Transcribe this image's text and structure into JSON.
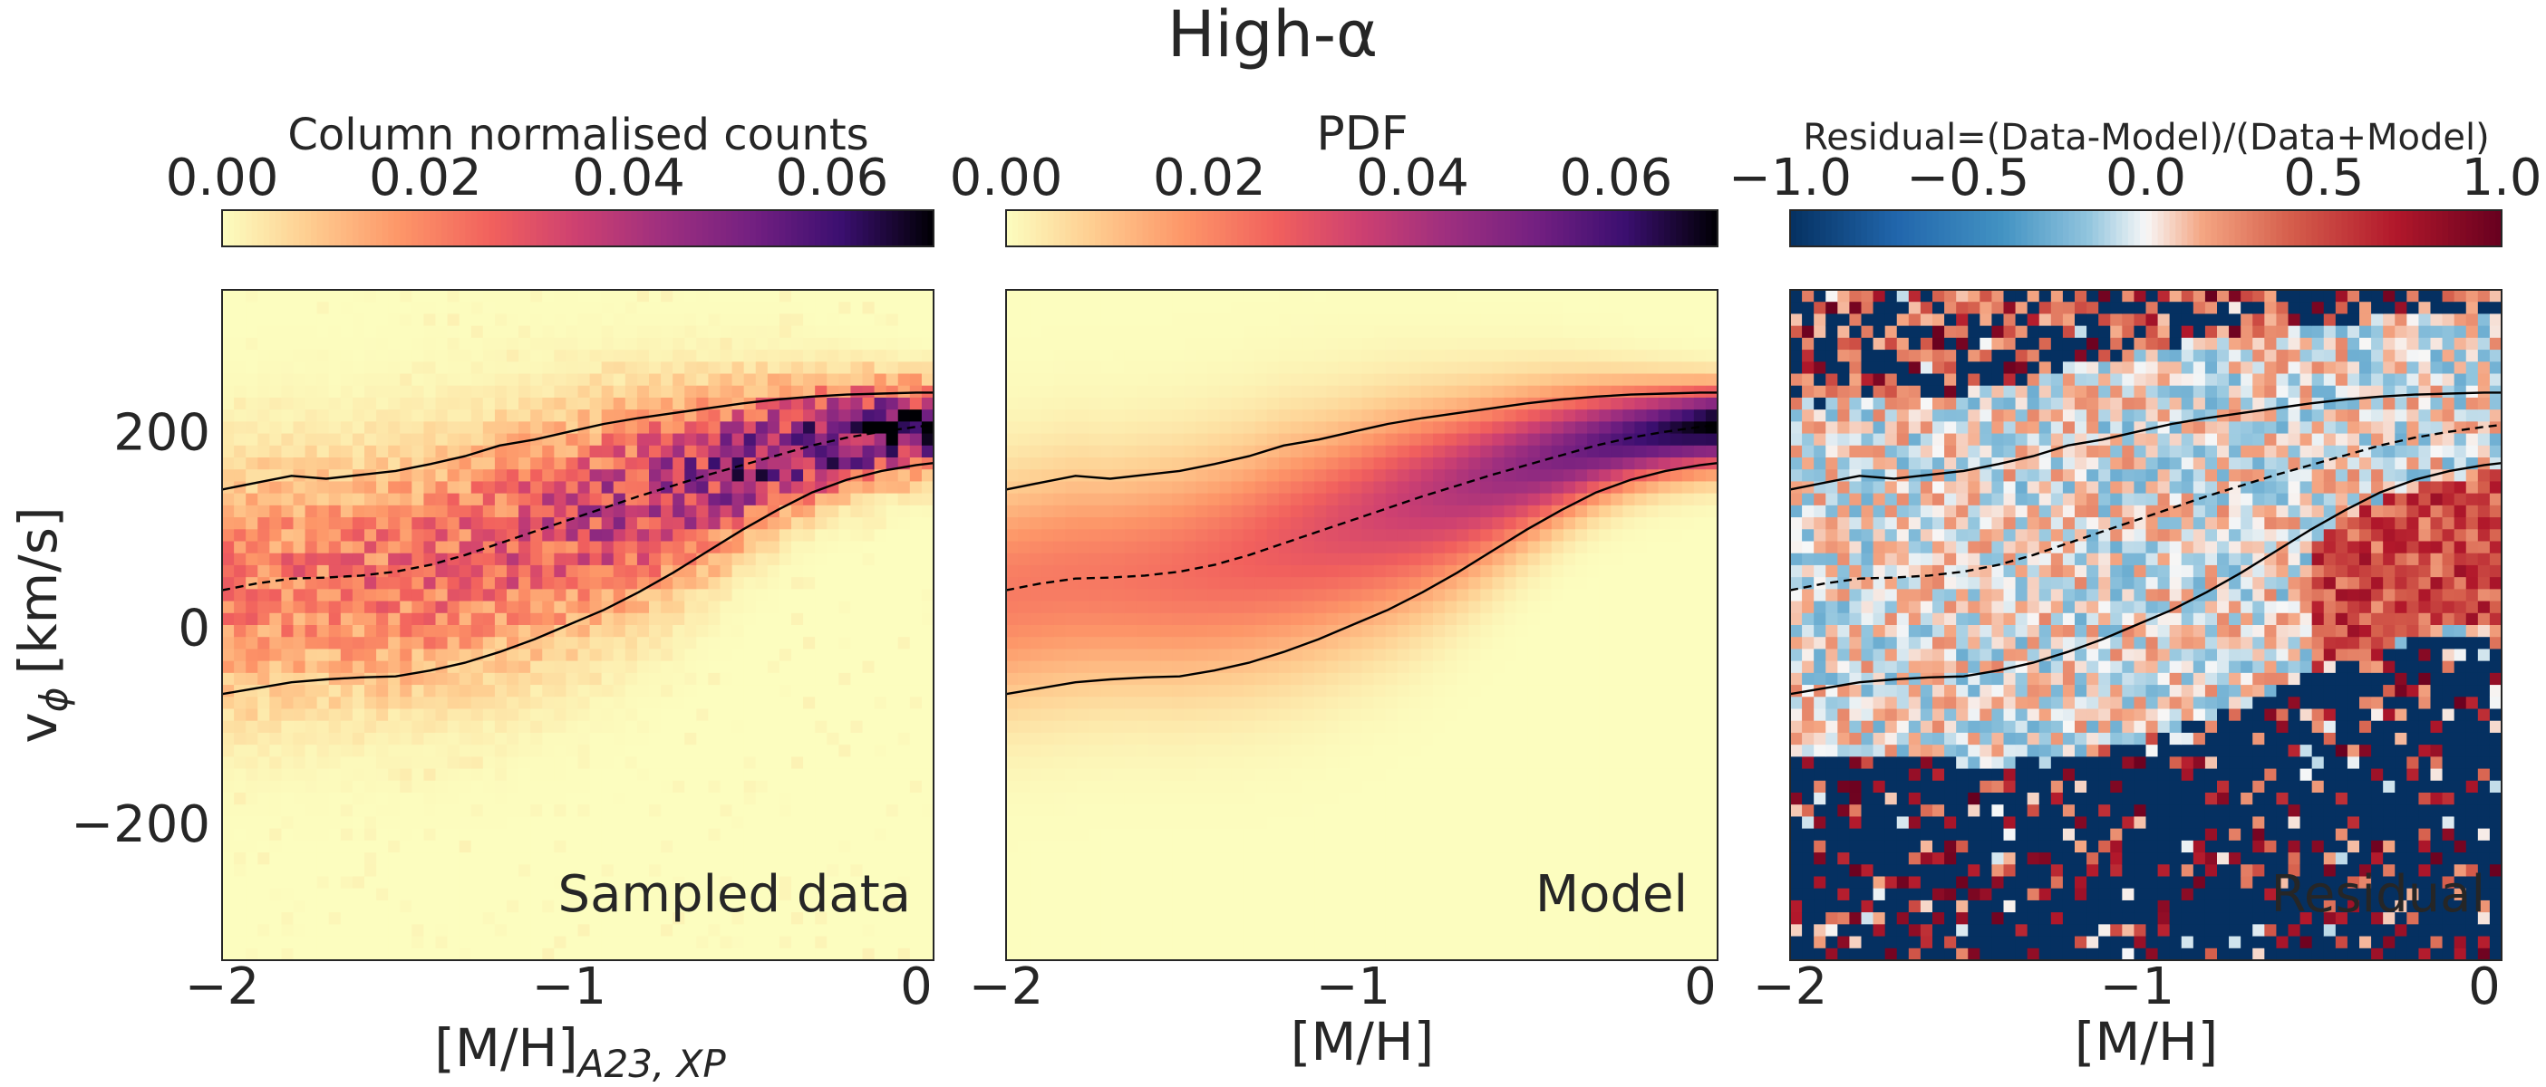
{
  "title": "High-α",
  "chart_data": [
    {
      "type": "heatmap",
      "panel_label": "Sampled data",
      "colorbar": {
        "label": "Column normalised counts",
        "range": [
          0.0,
          0.07
        ],
        "ticks": [
          "0.00",
          "0.02",
          "0.04",
          "0.06"
        ],
        "colormap": "magma_r"
      },
      "xlabel_main": "[M/H]",
      "xlabel_sub": "A23, XP",
      "ylabel_main": "v",
      "ylabel_sub": "ϕ",
      "ylabel_unit": "[km/s]",
      "xlim": [
        -2.0,
        0.05
      ],
      "ylim": [
        -340,
        345
      ],
      "xticks": [
        "−2",
        "−1",
        "0"
      ],
      "yticks": [
        "−200",
        "0",
        "200"
      ]
    },
    {
      "type": "heatmap",
      "panel_label": "Model",
      "colorbar": {
        "label": "PDF",
        "range": [
          0.0,
          0.07
        ],
        "ticks": [
          "0.00",
          "0.02",
          "0.04",
          "0.06"
        ],
        "colormap": "magma_r"
      },
      "xlabel": "[M/H]",
      "xlim": [
        -2.0,
        0.05
      ],
      "ylim": [
        -340,
        345
      ],
      "xticks": [
        "−2",
        "−1",
        "0"
      ]
    },
    {
      "type": "heatmap",
      "panel_label": "Residual",
      "colorbar": {
        "label": "Residual=(Data-Model)/(Data+Model)",
        "range": [
          -1.0,
          1.0
        ],
        "ticks": [
          "−1.0",
          "−0.5",
          "0.0",
          "0.5",
          "1.0"
        ],
        "colormap": "RdBu_r"
      },
      "xlabel": "[M/H]",
      "xlim": [
        -2.0,
        0.05
      ],
      "ylim": [
        -340,
        345
      ],
      "xticks": [
        "−2",
        "−1",
        "0"
      ]
    }
  ],
  "curves": {
    "x": [
      -2.0,
      -1.9,
      -1.8,
      -1.7,
      -1.6,
      -1.5,
      -1.4,
      -1.3,
      -1.2,
      -1.1,
      -1.0,
      -0.9,
      -0.8,
      -0.7,
      -0.6,
      -0.5,
      -0.4,
      -0.3,
      -0.2,
      -0.1,
      0.0,
      0.05
    ],
    "upper": [
      141,
      148,
      155,
      152,
      156,
      160,
      167,
      175,
      186,
      192,
      200,
      208,
      214,
      219,
      224,
      229,
      233,
      236,
      238,
      239,
      240,
      240
    ],
    "median": [
      38,
      45,
      50,
      51,
      53,
      57,
      64,
      74,
      86,
      98,
      110,
      122,
      134,
      145,
      156,
      166,
      176,
      186,
      194,
      200,
      205,
      207
    ],
    "lower": [
      -68,
      -62,
      -56,
      -53,
      -51,
      -50,
      -44,
      -36,
      -25,
      -12,
      3,
      18,
      36,
      56,
      78,
      100,
      120,
      138,
      151,
      160,
      166,
      168
    ]
  }
}
